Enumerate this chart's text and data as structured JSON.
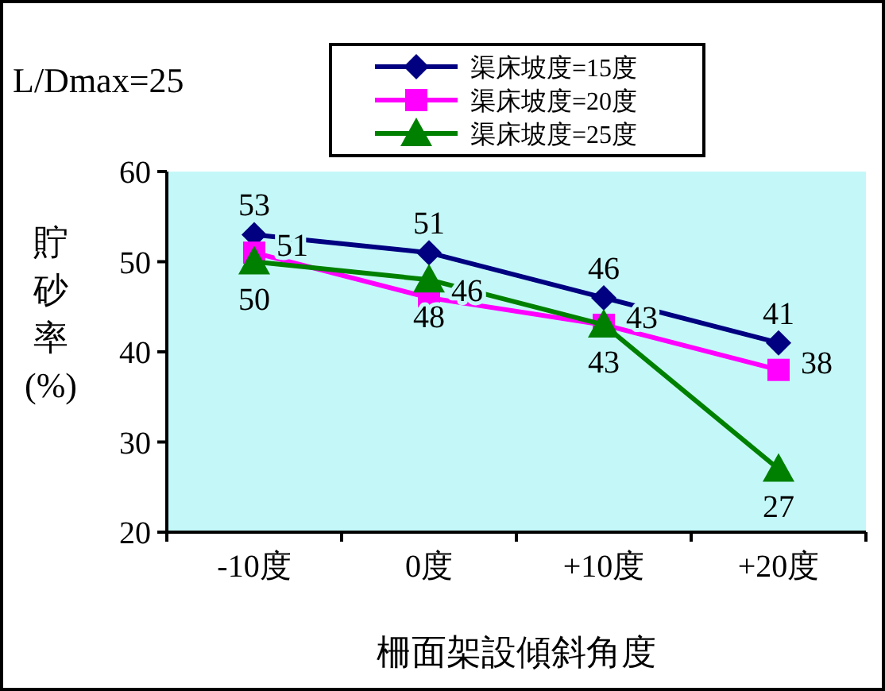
{
  "chart_data": {
    "type": "line",
    "xlabel": "柵面架設傾斜角度",
    "ylabel": "貯砂率(%)",
    "annotations": [
      "L/Dmax=25"
    ],
    "categories": [
      "-10度",
      "0度",
      "+10度",
      "+20度"
    ],
    "series": [
      {
        "name": "渠床坡度=15度",
        "color": "#000080",
        "marker": "diamond",
        "values": [
          53,
          51,
          46,
          41
        ]
      },
      {
        "name": "渠床坡度=20度",
        "color": "#ff00ff",
        "marker": "square",
        "values": [
          51,
          46,
          43,
          38
        ]
      },
      {
        "name": "渠床坡度=25度",
        "color": "#008000",
        "marker": "triangle",
        "values": [
          50,
          48,
          43,
          27
        ]
      }
    ],
    "ylim": [
      20,
      60
    ],
    "yticks": [
      20,
      30,
      40,
      50,
      60
    ],
    "grid": false,
    "legend": "top",
    "data_labels": true
  }
}
